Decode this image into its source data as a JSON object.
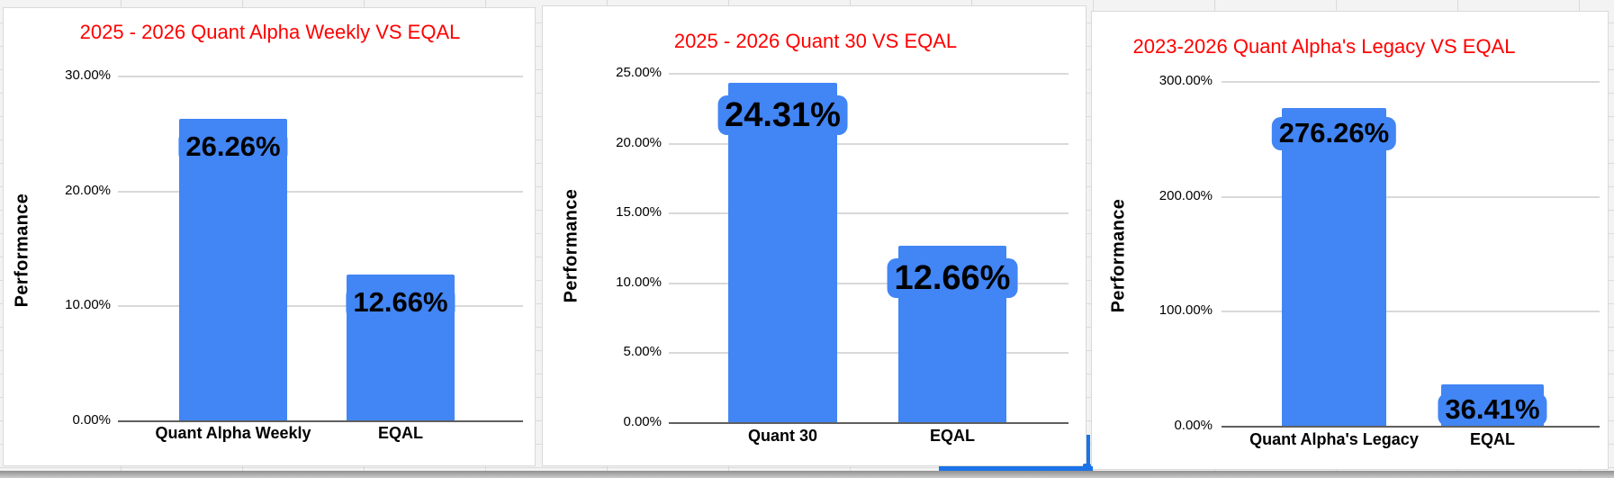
{
  "colors": {
    "bar_blue": "#4285f4",
    "title_red": "#ff0000",
    "gridline_gray": "#d9d9d9",
    "axis_gray": "#5f5f5f",
    "selection_blue": "#1a73e8",
    "label_text": "#000000"
  },
  "chart_data": [
    {
      "type": "bar",
      "title": "2025 - 2026 Quant Alpha Weekly VS EQAL",
      "ylabel": "Performance",
      "xlabel": "",
      "categories": [
        "Quant Alpha Weekly",
        "EQAL"
      ],
      "values": [
        26.26,
        12.66
      ],
      "value_labels": [
        "26.26%",
        "12.66%"
      ],
      "yticks": [
        {
          "label": "30.00%",
          "value": 30
        },
        {
          "label": "20.00%",
          "value": 20
        },
        {
          "label": "10.00%",
          "value": 10
        },
        {
          "label": "0.00%",
          "value": 0
        }
      ],
      "ylim": [
        0,
        30
      ],
      "grid": true,
      "legend": "none"
    },
    {
      "type": "bar",
      "title": "2025 - 2026 Quant 30 VS EQAL",
      "ylabel": "Performance",
      "xlabel": "",
      "categories": [
        "Quant 30",
        "EQAL"
      ],
      "values": [
        24.31,
        12.66
      ],
      "value_labels": [
        "24.31%",
        "12.66%"
      ],
      "yticks": [
        {
          "label": "25.00%",
          "value": 25
        },
        {
          "label": "20.00%",
          "value": 20
        },
        {
          "label": "15.00%",
          "value": 15
        },
        {
          "label": "10.00%",
          "value": 10
        },
        {
          "label": "5.00%",
          "value": 5
        },
        {
          "label": "0.00%",
          "value": 0
        }
      ],
      "ylim": [
        0,
        25
      ],
      "grid": true,
      "legend": "none"
    },
    {
      "type": "bar",
      "title": "2023-2026 Quant Alpha's Legacy VS EQAL",
      "ylabel": "Performance",
      "xlabel": "",
      "categories": [
        "Quant Alpha's Legacy",
        "EQAL"
      ],
      "values": [
        276.26,
        36.41
      ],
      "value_labels": [
        "276.26%",
        "36.41%"
      ],
      "yticks": [
        {
          "label": "300.00%",
          "value": 300
        },
        {
          "label": "200.00%",
          "value": 200
        },
        {
          "label": "100.00%",
          "value": 100
        },
        {
          "label": "0.00%",
          "value": 0
        }
      ],
      "ylim": [
        0,
        300
      ],
      "grid": true,
      "legend": "none"
    }
  ]
}
